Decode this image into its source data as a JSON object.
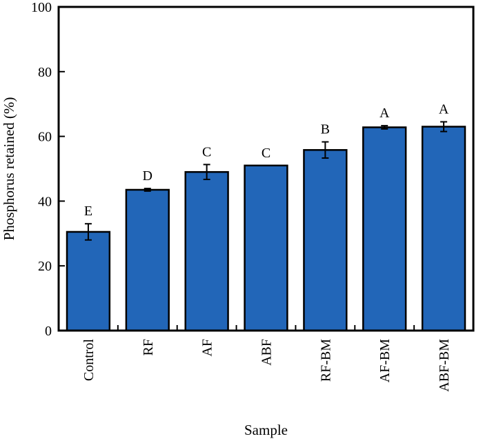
{
  "chart_data": {
    "type": "bar",
    "title": "",
    "xlabel": "Sample",
    "ylabel": "Phosphorus retained (%)",
    "ylim": [
      0,
      100
    ],
    "yticks": [
      0,
      20,
      40,
      60,
      80,
      100
    ],
    "grid": false,
    "categories": [
      "Control",
      "RF",
      "AF",
      "ABF",
      "RF-BM",
      "AF-BM",
      "ABF-BM"
    ],
    "values": [
      30.5,
      43.5,
      49,
      51,
      55.8,
      62.8,
      63
    ],
    "errors": [
      2.5,
      0.4,
      2.3,
      0,
      2.5,
      0.5,
      1.5
    ],
    "significance_labels": [
      "E",
      "D",
      "C",
      "C",
      "B",
      "A",
      "A"
    ],
    "bar_color": "#2266b8",
    "edge_color": "#000000"
  }
}
